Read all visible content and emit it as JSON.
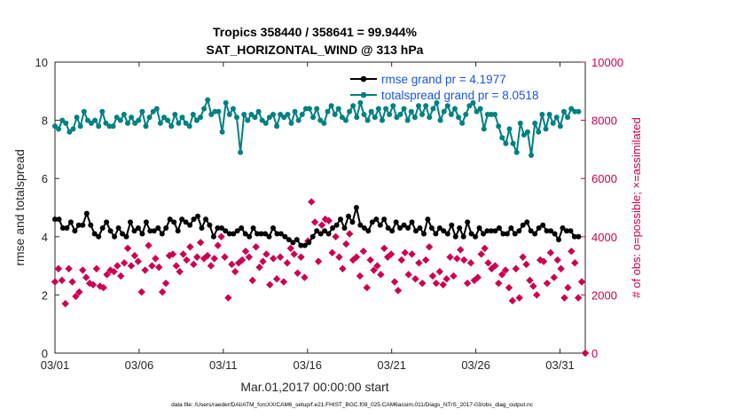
{
  "chart_data": {
    "type": "line",
    "title": "Tropics 358440 / 358641 = 99.944%",
    "subtitle": "SAT_HORIZONTAL_WIND @ 313 hPa",
    "xlabel": "Mar.01,2017 00:00:00 start",
    "ylabel": "rmse and totalspread",
    "y2label": "# of obs: o=possible; ×=assimilated",
    "footer": "data file: /Users/raeder/DAI/ATM_forcXX/CAM6_setup/f.e21.FHIST_BGC.f09_025.CAM6assim.011/Diags_NTrS_2017-03/obs_diag_output.nc",
    "x_ticks": [
      {
        "day": 1,
        "label": "03/01"
      },
      {
        "day": 6,
        "label": "03/06"
      },
      {
        "day": 11,
        "label": "03/11"
      },
      {
        "day": 16,
        "label": "03/16"
      },
      {
        "day": 21,
        "label": "03/21"
      },
      {
        "day": 26,
        "label": "03/26"
      },
      {
        "day": 31,
        "label": "03/31"
      }
    ],
    "xlim": [
      1,
      32.5
    ],
    "ylim": [
      0,
      10
    ],
    "y_ticks": [
      "0",
      "2",
      "4",
      "6",
      "8",
      "10"
    ],
    "y2lim": [
      0,
      10000
    ],
    "y2_ticks": [
      "0",
      "2000",
      "4000",
      "6000",
      "8000",
      "10000"
    ],
    "grid": false,
    "legend_position": "top-right",
    "series": [
      {
        "name": "rmse",
        "legend": "rmse grand pr = 4.1977",
        "axis": "left",
        "color": "#000000",
        "values": [
          4.6,
          4.6,
          4.3,
          4.3,
          4.5,
          4.2,
          4.4,
          4.4,
          4.8,
          4.4,
          4.1,
          4.0,
          4.3,
          4.5,
          4.2,
          4.0,
          4.3,
          4.1,
          4.0,
          4.5,
          4.2,
          4.3,
          4.1,
          4.5,
          4.2,
          4.2,
          4.3,
          4.1,
          4.3,
          4.6,
          4.5,
          4.2,
          4.6,
          4.5,
          4.4,
          4.6,
          4.7,
          4.3,
          4.6,
          4.4,
          4.0,
          4.3,
          4.3,
          4.2,
          4.1,
          4.1,
          4.2,
          4.3,
          4.1,
          4.0,
          4.3,
          4.1,
          4.1,
          4.1,
          4.0,
          4.3,
          4.1,
          4.1,
          4.0,
          3.9,
          3.8,
          3.9,
          3.7,
          3.7,
          3.8,
          4.0,
          4.2,
          4.1,
          4.2,
          4.1,
          4.3,
          4.4,
          4.6,
          4.3,
          4.7,
          4.5,
          5.0,
          4.4,
          4.3,
          4.2,
          4.5,
          4.6,
          4.4,
          4.6,
          4.3,
          4.2,
          4.5,
          4.3,
          4.4,
          4.3,
          4.5,
          4.2,
          4.3,
          4.1,
          4.6,
          4.3,
          4.1,
          4.3,
          4.2,
          4.1,
          4.4,
          4.0,
          4.3,
          4.0,
          4.5,
          4.1,
          4.0,
          4.3,
          4.1,
          4.2,
          4.2,
          4.2,
          4.3,
          4.1,
          4.1,
          4.3,
          4.1,
          4.2,
          4.4,
          4.5,
          4.2,
          4.1,
          4.3,
          4.4,
          4.2,
          4.2,
          4.1,
          3.9,
          4.3,
          4.2,
          4.2,
          4.0,
          4.0
        ]
      },
      {
        "name": "totalspread",
        "legend": "totalspread grand pr = 8.0518",
        "axis": "left",
        "color": "#008080",
        "values": [
          7.8,
          7.7,
          8.0,
          7.9,
          7.6,
          7.7,
          8.1,
          7.8,
          8.3,
          8.0,
          7.9,
          8.0,
          7.8,
          8.3,
          7.9,
          7.8,
          7.8,
          8.1,
          8.0,
          8.2,
          7.9,
          8.1,
          7.9,
          8.0,
          8.3,
          7.8,
          8.1,
          8.3,
          8.4,
          7.9,
          8.1,
          8.0,
          7.8,
          8.2,
          7.9,
          8.1,
          7.9,
          7.8,
          8.2,
          8.0,
          8.1,
          8.4,
          8.7,
          8.2,
          8.3,
          8.3,
          7.6,
          8.6,
          8.2,
          8.4,
          8.1,
          6.9,
          8.2,
          8.0,
          8.2,
          8.1,
          8.3,
          8.0,
          7.9,
          8.1,
          8.2,
          7.8,
          8.2,
          8.1,
          8.2,
          7.9,
          8.3,
          8.0,
          8.2,
          8.4,
          8.4,
          8.1,
          8.4,
          8.0,
          7.9,
          8.3,
          8.5,
          8.2,
          8.4,
          8.1,
          8.0,
          8.3,
          8.5,
          8.1,
          8.6,
          8.2,
          8.0,
          8.3,
          8.1,
          8.4,
          8.0,
          8.4,
          8.2,
          8.5,
          8.1,
          8.2,
          8.4,
          8.0,
          8.3,
          8.1,
          8.5,
          8.2,
          8.5,
          8.1,
          8.4,
          8.6,
          8.0,
          8.3,
          8.5,
          8.2,
          8.4,
          8.1,
          7.9,
          8.2,
          8.5,
          8.6,
          8.3,
          8.4,
          7.7,
          8.2,
          8.2,
          8.2,
          7.8,
          7.4,
          7.2,
          7.7,
          7.2,
          6.9,
          7.9,
          7.5,
          7.6,
          6.8,
          7.9,
          7.6,
          8.2,
          7.7,
          8.2,
          7.9,
          8.1,
          7.8,
          8.3,
          8.1,
          8.4,
          8.3,
          8.3
        ]
      },
      {
        "name": "obs possible",
        "legend": "o=possible",
        "axis": "right",
        "color": "#cc0052",
        "marker": "diamond",
        "values": [
          2450,
          2900,
          2500,
          1700,
          2900,
          2450,
          1950,
          2100,
          2850,
          2600,
          2400,
          2350,
          2900,
          2300,
          2250,
          2700,
          2850,
          2800,
          3000,
          2650,
          3100,
          3600,
          3000,
          3350,
          3150,
          2100,
          2850,
          3700,
          3000,
          3250,
          2950,
          2100,
          2400,
          3350,
          3400,
          3000,
          2800,
          3400,
          3200,
          3650,
          3050,
          3300,
          3800,
          3250,
          3350,
          3000,
          3250,
          3700,
          4000,
          3300,
          1900,
          3050,
          2800,
          3100,
          3200,
          3500,
          3300,
          2500,
          3650,
          2950,
          3150,
          3400,
          2350,
          3250,
          2550,
          3300,
          2450,
          3100,
          3600,
          3400,
          2750,
          3300,
          2600,
          3850,
          5200,
          4500,
          3150,
          4400,
          4600,
          4550,
          3450,
          4000,
          3300,
          2900,
          3750,
          4100,
          3200,
          3300,
          2650,
          3500,
          2250,
          3200,
          2850,
          3000,
          2700,
          3600,
          3300,
          3400,
          2450,
          2150,
          3200,
          3450,
          2700,
          3400,
          2550,
          3100,
          2400,
          3200,
          3650,
          2650,
          2400,
          2800,
          2350,
          2550,
          3300,
          2650,
          3250,
          3550,
          3200,
          2400,
          3100,
          2500,
          2600,
          3400,
          3600,
          3100,
          2900,
          3000,
          2400,
          2700,
          2850,
          2250,
          1800,
          2900,
          1900,
          3300,
          3050,
          2500,
          2300,
          2000,
          3200,
          3150,
          2400,
          3450,
          2600,
          3200,
          2900,
          1900,
          2250,
          3500,
          3100,
          1900,
          2450,
          0
        ]
      }
    ]
  }
}
